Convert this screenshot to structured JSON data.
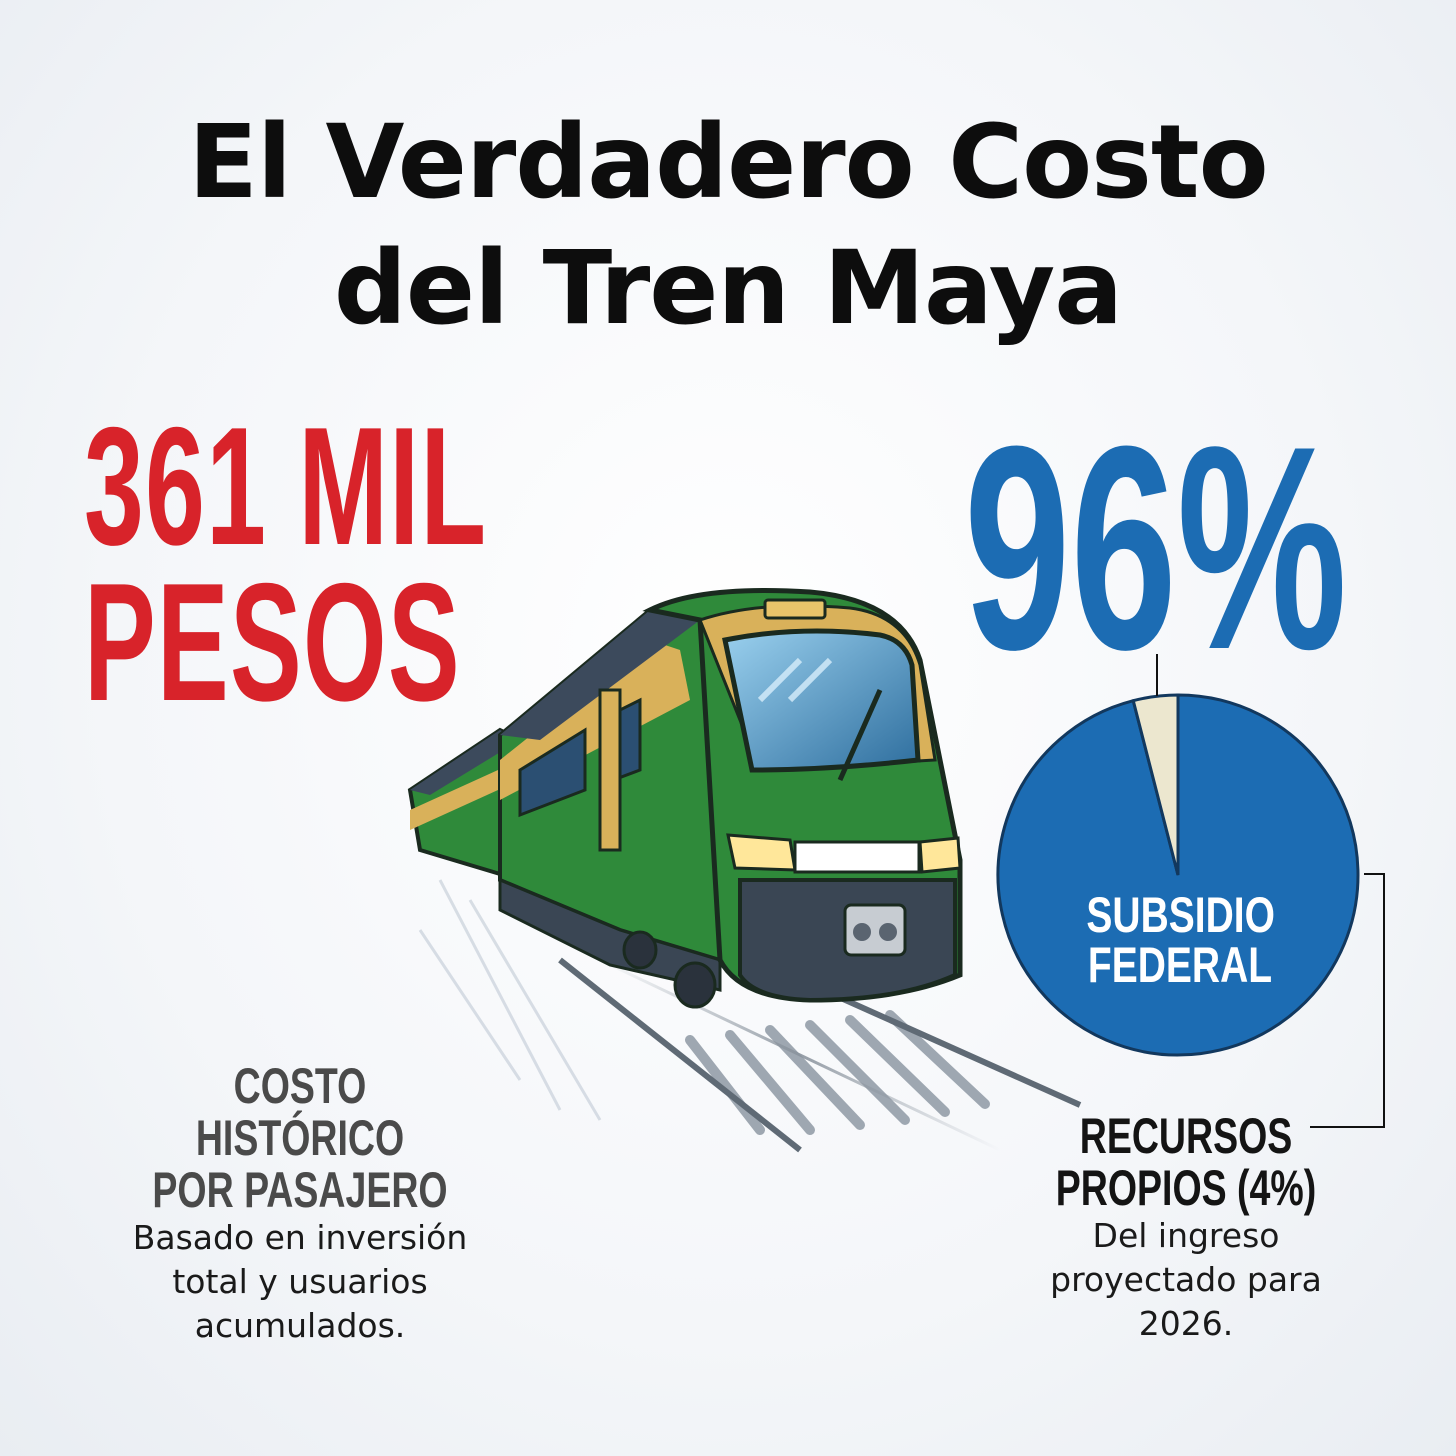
{
  "title": {
    "line1": "El Verdadero Costo",
    "line2": "del Tren Maya"
  },
  "cost_stat": {
    "line1": "361 MIL",
    "line2": "PESOS",
    "color": "#d8232a"
  },
  "subsidy_stat": {
    "value": "96%",
    "color": "#1c6cb3"
  },
  "cost_caption": {
    "heading_line1": "COSTO HISTÓRICO",
    "heading_line2": "POR PASAJERO",
    "body_line1": "Basado en inversión",
    "body_line2": "total y usuarios",
    "body_line3": "acumulados."
  },
  "own_resources_caption": {
    "heading_line1": "RECURSOS",
    "heading_line2": "PROPIOS (4%)",
    "body_line1": "Del ingreso",
    "body_line2": "proyectado para",
    "body_line3": "2026."
  },
  "pie_label": {
    "line1": "SUBSIDIO",
    "line2": "FEDERAL"
  },
  "chart_data": {
    "type": "pie",
    "slices": [
      {
        "label": "SUBSIDIO FEDERAL",
        "value": 96,
        "color": "#1c6cb3"
      },
      {
        "label": "RECURSOS PROPIOS (4%)",
        "value": 4,
        "color": "#ece7cf"
      }
    ]
  },
  "train_colors": {
    "body": "#2f8a3a",
    "body_dark": "#1f5e2a",
    "stripe": "#d9b15a",
    "roof": "#3c4a5c"
  }
}
